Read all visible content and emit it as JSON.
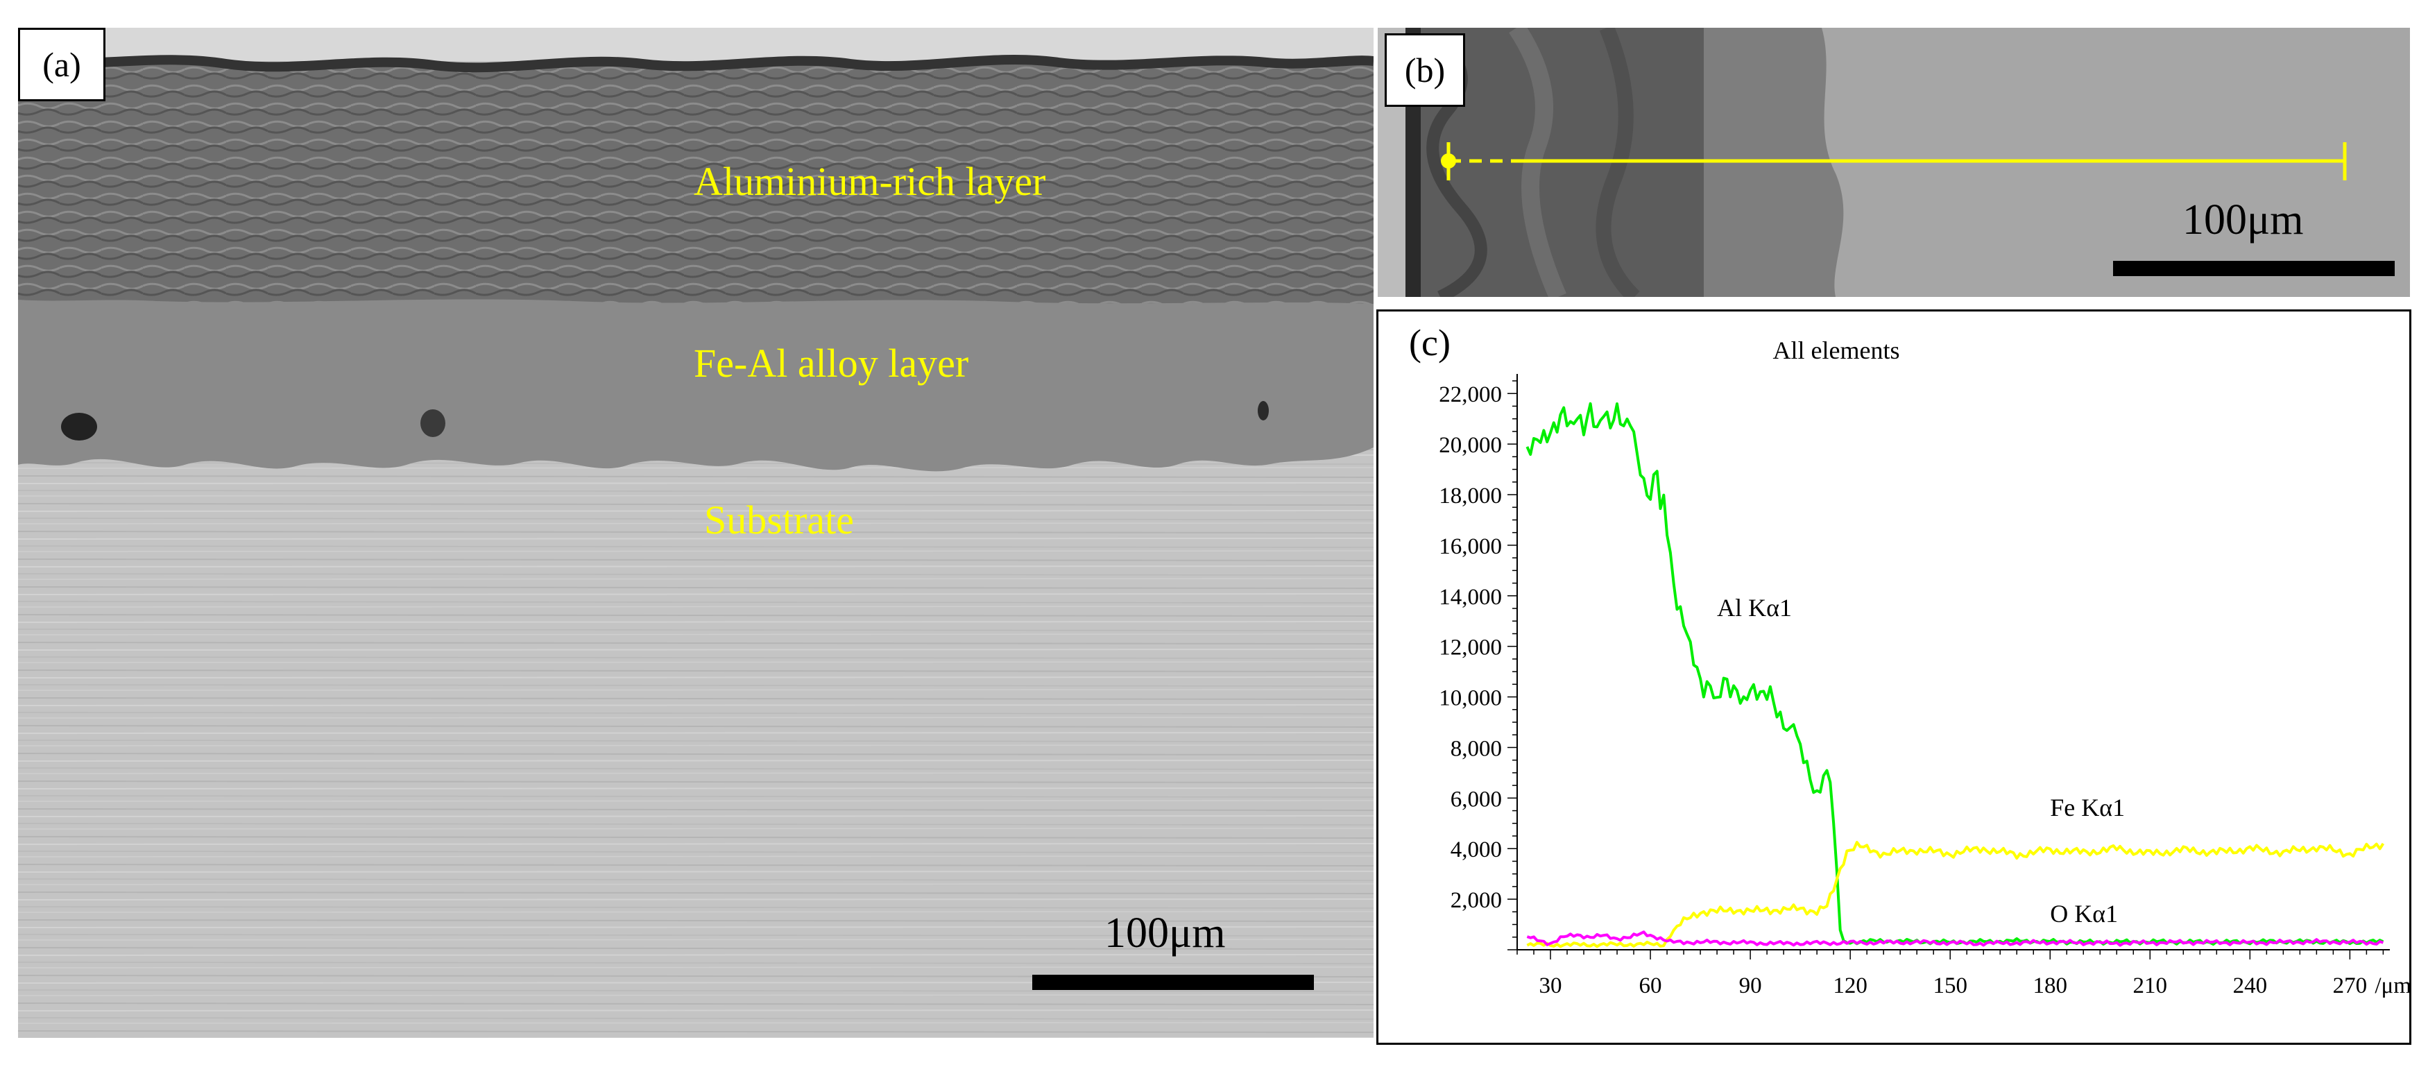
{
  "panel_a": {
    "label": "(a)",
    "layers": [
      "Aluminium-rich layer",
      "Fe-Al alloy layer",
      "Substrate"
    ],
    "scale_text": "100μm"
  },
  "panel_b": {
    "label": "(b)",
    "scale_text": "100μm",
    "line_color": "#ffff00"
  },
  "panel_c": {
    "label": "(c)"
  },
  "chart_data": {
    "type": "line",
    "title": "All elements",
    "x_unit": "/μm",
    "xlim": [
      20,
      282
    ],
    "ylim": [
      0,
      22500
    ],
    "x_ticks": [
      "30",
      "60",
      "90",
      "120",
      "150",
      "180",
      "210",
      "240",
      "270"
    ],
    "y_ticks": [
      "2,000",
      "4,000",
      "6,000",
      "8,000",
      "10,000",
      "12,000",
      "14,000",
      "16,000",
      "18,000",
      "20,000",
      "22,000"
    ],
    "grid": false,
    "series": [
      {
        "name": "Al Kα1",
        "color": "#00ee00",
        "points": [
          [
            23,
            19900
          ],
          [
            26,
            20300
          ],
          [
            29,
            20100
          ],
          [
            32,
            20700
          ],
          [
            34,
            21500
          ],
          [
            36,
            20800
          ],
          [
            38,
            21100
          ],
          [
            40,
            20400
          ],
          [
            42,
            21300
          ],
          [
            44,
            20600
          ],
          [
            46,
            21500
          ],
          [
            48,
            20800
          ],
          [
            50,
            21200
          ],
          [
            52,
            20500
          ],
          [
            54,
            21000
          ],
          [
            56,
            19800
          ],
          [
            58,
            18500
          ],
          [
            60,
            17800
          ],
          [
            62,
            19000
          ],
          [
            63,
            17200
          ],
          [
            64,
            17800
          ],
          [
            66,
            15600
          ],
          [
            68,
            13800
          ],
          [
            70,
            13000
          ],
          [
            72,
            11800
          ],
          [
            74,
            10900
          ],
          [
            76,
            10300
          ],
          [
            78,
            10700
          ],
          [
            80,
            9800
          ],
          [
            82,
            10600
          ],
          [
            84,
            10100
          ],
          [
            86,
            10200
          ],
          [
            88,
            9900
          ],
          [
            90,
            10500
          ],
          [
            92,
            10100
          ],
          [
            94,
            9900
          ],
          [
            96,
            10100
          ],
          [
            98,
            9500
          ],
          [
            100,
            9100
          ],
          [
            102,
            8600
          ],
          [
            103,
            9100
          ],
          [
            104,
            8200
          ],
          [
            106,
            7500
          ],
          [
            108,
            6800
          ],
          [
            110,
            6200
          ],
          [
            112,
            7000
          ],
          [
            114,
            6800
          ],
          [
            116,
            3000
          ],
          [
            117,
            800
          ],
          [
            118,
            300
          ],
          [
            130,
            350
          ],
          [
            150,
            300
          ],
          [
            170,
            350
          ],
          [
            190,
            300
          ],
          [
            210,
            320
          ],
          [
            230,
            300
          ],
          [
            250,
            330
          ],
          [
            270,
            300
          ],
          [
            280,
            320
          ]
        ]
      },
      {
        "name": "Fe Kα1",
        "color": "#ffff00",
        "points": [
          [
            23,
            200
          ],
          [
            40,
            200
          ],
          [
            60,
            220
          ],
          [
            64,
            200
          ],
          [
            66,
            600
          ],
          [
            68,
            900
          ],
          [
            70,
            1100
          ],
          [
            72,
            1300
          ],
          [
            75,
            1500
          ],
          [
            80,
            1500
          ],
          [
            85,
            1600
          ],
          [
            90,
            1500
          ],
          [
            95,
            1600
          ],
          [
            100,
            1550
          ],
          [
            105,
            1650
          ],
          [
            110,
            1500
          ],
          [
            113,
            1700
          ],
          [
            115,
            2400
          ],
          [
            117,
            3200
          ],
          [
            119,
            3900
          ],
          [
            122,
            4100
          ],
          [
            130,
            3800
          ],
          [
            140,
            3950
          ],
          [
            150,
            3800
          ],
          [
            160,
            4000
          ],
          [
            170,
            3750
          ],
          [
            180,
            3950
          ],
          [
            190,
            3850
          ],
          [
            200,
            4000
          ],
          [
            210,
            3800
          ],
          [
            220,
            3950
          ],
          [
            230,
            3850
          ],
          [
            240,
            4000
          ],
          [
            250,
            3850
          ],
          [
            260,
            4050
          ],
          [
            270,
            3800
          ],
          [
            280,
            4200
          ]
        ]
      },
      {
        "name": "O Kα1",
        "color": "#ff00ff",
        "points": [
          [
            23,
            500
          ],
          [
            26,
            400
          ],
          [
            30,
            250
          ],
          [
            34,
            500
          ],
          [
            38,
            600
          ],
          [
            42,
            500
          ],
          [
            46,
            550
          ],
          [
            50,
            450
          ],
          [
            54,
            500
          ],
          [
            58,
            650
          ],
          [
            62,
            500
          ],
          [
            66,
            300
          ],
          [
            80,
            300
          ],
          [
            100,
            250
          ],
          [
            120,
            280
          ],
          [
            140,
            300
          ],
          [
            160,
            250
          ],
          [
            180,
            300
          ],
          [
            200,
            260
          ],
          [
            220,
            300
          ],
          [
            240,
            280
          ],
          [
            260,
            320
          ],
          [
            280,
            280
          ]
        ]
      }
    ]
  }
}
